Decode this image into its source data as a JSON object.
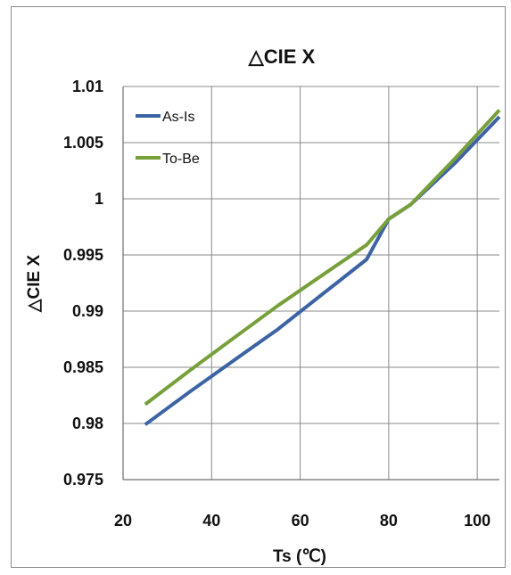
{
  "chart_data": {
    "type": "line",
    "title": "△CIE X",
    "xlabel": "Ts (℃)",
    "ylabel": "△CIE X",
    "xlim": [
      20,
      105
    ],
    "ylim": [
      0.975,
      1.01
    ],
    "x_ticks": [
      20,
      40,
      60,
      80,
      100
    ],
    "y_ticks": [
      0.975,
      0.98,
      0.985,
      0.99,
      0.995,
      1,
      1.005,
      1.01
    ],
    "x_tick_labels": [
      "20",
      "40",
      "60",
      "80",
      "100"
    ],
    "y_tick_labels": [
      "0.975",
      "0.98",
      "0.985",
      "0.99",
      "0.995",
      "1",
      "1.005",
      "1.01"
    ],
    "grid": true,
    "legend_position": "top-left",
    "series": [
      {
        "name": "As-Is",
        "color": "#3d63a4",
        "x": [
          25,
          35,
          45,
          55,
          65,
          75,
          80,
          85,
          95,
          105
        ],
        "y": [
          0.9799,
          0.9828,
          0.9856,
          0.9884,
          0.9915,
          0.9946,
          0.9982,
          0.9995,
          1.0032,
          1.0073
        ]
      },
      {
        "name": "To-Be",
        "color": "#77a03a",
        "x": [
          25,
          35,
          45,
          55,
          65,
          75,
          80,
          85,
          95,
          105
        ],
        "y": [
          0.9817,
          0.9847,
          0.9876,
          0.9905,
          0.9932,
          0.9959,
          0.9982,
          0.9995,
          1.0036,
          1.0079
        ]
      }
    ]
  }
}
